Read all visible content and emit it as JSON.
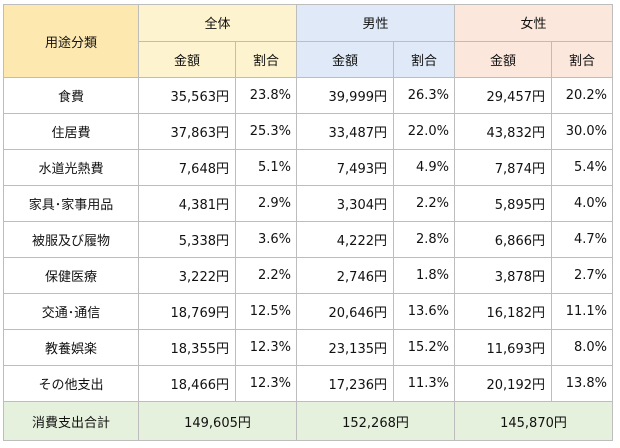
{
  "header": {
    "category_label": "用途分類",
    "groups": [
      "全体",
      "男性",
      "女性"
    ],
    "amount_label": "金額",
    "ratio_label": "割合"
  },
  "rows": [
    {
      "category": "食費",
      "all_amount": "35,563円",
      "all_ratio": "23.8%",
      "male_amount": "39,999円",
      "male_ratio": "26.3%",
      "female_amount": "29,457円",
      "female_ratio": "20.2%"
    },
    {
      "category": "住居費",
      "all_amount": "37,863円",
      "all_ratio": "25.3%",
      "male_amount": "33,487円",
      "male_ratio": "22.0%",
      "female_amount": "43,832円",
      "female_ratio": "30.0%"
    },
    {
      "category": "水道光熱費",
      "all_amount": "7,648円",
      "all_ratio": "5.1%",
      "male_amount": "7,493円",
      "male_ratio": "4.9%",
      "female_amount": "7,874円",
      "female_ratio": "5.4%"
    },
    {
      "category": "家具･家事用品",
      "all_amount": "4,381円",
      "all_ratio": "2.9%",
      "male_amount": "3,304円",
      "male_ratio": "2.2%",
      "female_amount": "5,895円",
      "female_ratio": "4.0%"
    },
    {
      "category": "被服及び履物",
      "all_amount": "5,338円",
      "all_ratio": "3.6%",
      "male_amount": "4,222円",
      "male_ratio": "2.8%",
      "female_amount": "6,866円",
      "female_ratio": "4.7%"
    },
    {
      "category": "保健医療",
      "all_amount": "3,222円",
      "all_ratio": "2.2%",
      "male_amount": "2,746円",
      "male_ratio": "1.8%",
      "female_amount": "3,878円",
      "female_ratio": "2.7%"
    },
    {
      "category": "交通･通信",
      "all_amount": "18,769円",
      "all_ratio": "12.5%",
      "male_amount": "20,646円",
      "male_ratio": "13.6%",
      "female_amount": "16,182円",
      "female_ratio": "11.1%"
    },
    {
      "category": "教養娯楽",
      "all_amount": "18,355円",
      "all_ratio": "12.3%",
      "male_amount": "23,135円",
      "male_ratio": "15.2%",
      "female_amount": "11,693円",
      "female_ratio": "8.0%"
    },
    {
      "category": "その他支出",
      "all_amount": "18,466円",
      "all_ratio": "12.3%",
      "male_amount": "17,236円",
      "male_ratio": "11.3%",
      "female_amount": "20,192円",
      "female_ratio": "13.8%"
    }
  ],
  "total": {
    "label": "消費支出合計",
    "all": "149,605円",
    "male": "152,268円",
    "female": "145,870円"
  },
  "colors": {
    "category_header": "#fde8b0",
    "all_header": "#fef3cf",
    "male_header": "#dfe9f7",
    "female_header": "#fce7dc",
    "total_row": "#e6f1dd",
    "border": "#bdbdbd"
  }
}
